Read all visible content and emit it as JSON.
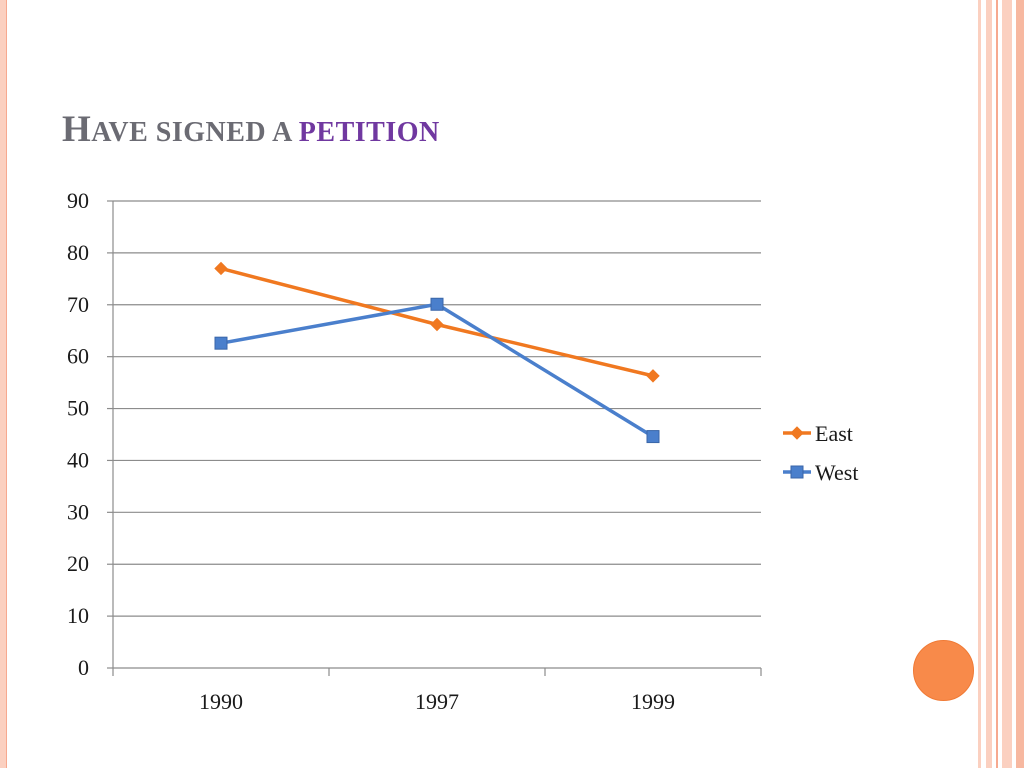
{
  "slide": {
    "title_cap": "H",
    "title_rest1": "AVE SIGNED A ",
    "title_rest2": "PETITION"
  },
  "colors": {
    "accent_title": "#7038a0",
    "title_gray": "#6b6b73",
    "east": "#f07820",
    "west": "#4a7fcc",
    "decor_circle": "#f88a4a",
    "border": "#fbd0c0"
  },
  "chart_data": {
    "type": "line",
    "categories": [
      "1990",
      "1997",
      "1999"
    ],
    "series": [
      {
        "name": "East",
        "values": [
          77,
          66.2,
          56.3
        ],
        "color": "#f07820",
        "marker": "diamond"
      },
      {
        "name": "West",
        "values": [
          62.6,
          70.1,
          44.6
        ],
        "color": "#4a7fcc",
        "marker": "square"
      }
    ],
    "yticks": [
      "0",
      "10",
      "20",
      "30",
      "40",
      "50",
      "60",
      "70",
      "80",
      "90"
    ],
    "ylim": [
      0,
      90
    ],
    "grid": true,
    "legend_position": "right"
  }
}
